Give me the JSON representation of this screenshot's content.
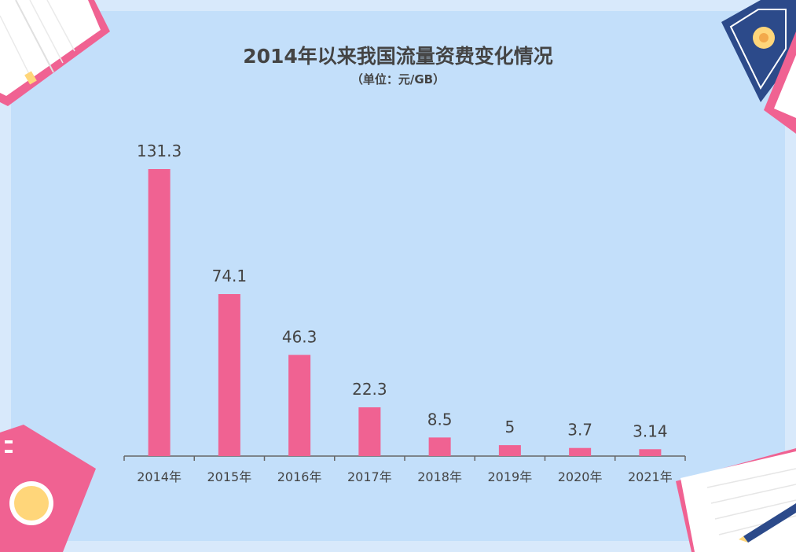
{
  "chart_data": {
    "type": "bar",
    "title": "2014年以来我国流量资费变化情况",
    "subtitle": "（单位：元/GB）",
    "categories": [
      "2014年",
      "2015年",
      "2016年",
      "2017年",
      "2018年",
      "2019年",
      "2020年",
      "2021年"
    ],
    "values": [
      131.3,
      74.1,
      46.3,
      22.3,
      8.5,
      5,
      3.7,
      3.14
    ],
    "value_labels": [
      "131.3",
      "74.1",
      "46.3",
      "22.3",
      "8.5",
      "5",
      "3.7",
      "3.14"
    ],
    "ylim": [
      0,
      131.3
    ],
    "grid": false,
    "bar_color": "#f06292"
  },
  "colors": {
    "background": "#d8e9fb",
    "panel": "#c3dffa",
    "text": "#444444",
    "pink": "#f06292",
    "navy": "#2c4a8a",
    "yellow": "#ffd67a"
  },
  "decorations": [
    "open-book-icon",
    "notebook-icon",
    "pen-icon"
  ]
}
